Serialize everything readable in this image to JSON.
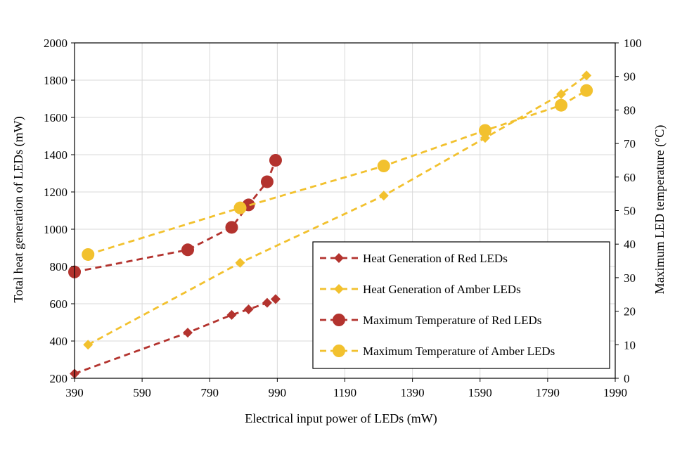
{
  "chart_data": {
    "type": "scatter",
    "title": "",
    "xlabel": "Electrical input power of LEDs (mW)",
    "ylabel": "Total heat generation of LEDs (mW)",
    "y2label": "Maximum LED temperature (°C)",
    "xlim": [
      390,
      1990
    ],
    "ylim": [
      200,
      2000
    ],
    "y2lim": [
      0,
      100
    ],
    "xticks": [
      "390",
      "590",
      "790",
      "990",
      "1190",
      "1390",
      "1590",
      "1790",
      "1990"
    ],
    "yticks": [
      "200",
      "400",
      "600",
      "800",
      "1000",
      "1200",
      "1400",
      "1600",
      "1800",
      "2000"
    ],
    "y2ticks": [
      "0",
      "10",
      "20",
      "30",
      "40",
      "50",
      "60",
      "70",
      "80",
      "90",
      "100"
    ],
    "grid": true,
    "legend_position": "bottom-right",
    "series": [
      {
        "name": "Heat Generation of Red LEDs",
        "axis": "left",
        "marker": "diamond",
        "color": "#b3332e",
        "x": [
          390,
          725,
          855,
          905,
          960,
          985
        ],
        "y": [
          225,
          445,
          540,
          570,
          605,
          625
        ]
      },
      {
        "name": "Heat Generation of Amber LEDs",
        "axis": "left",
        "marker": "diamond",
        "color": "#f2c12e",
        "x": [
          430,
          880,
          1305,
          1605,
          1830,
          1905
        ],
        "y": [
          380,
          820,
          1180,
          1490,
          1725,
          1825
        ]
      },
      {
        "name": "Maximum Temperature of Red LEDs",
        "axis": "right",
        "marker": "circle",
        "color": "#b3332e",
        "x": [
          390,
          725,
          855,
          905,
          960,
          985
        ],
        "y": [
          31.7,
          38.3,
          45.0,
          51.7,
          58.6,
          65.0
        ]
      },
      {
        "name": "Maximum Temperature of Amber LEDs",
        "axis": "right",
        "marker": "circle",
        "color": "#f2c12e",
        "x": [
          430,
          880,
          1305,
          1605,
          1830,
          1905
        ],
        "y": [
          36.9,
          50.8,
          63.3,
          73.9,
          81.4,
          85.8
        ]
      }
    ]
  }
}
